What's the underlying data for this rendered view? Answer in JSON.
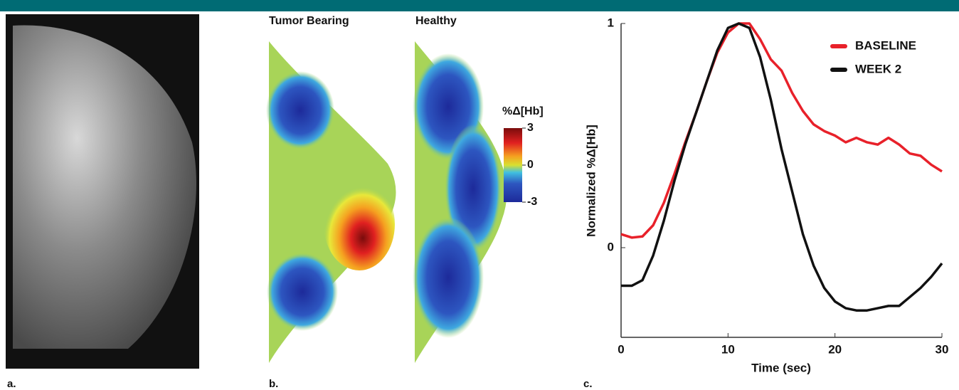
{
  "panel_labels": [
    "a.",
    "b.",
    "c."
  ],
  "chart_data": [
    {
      "type": "heatmap",
      "panel_titles": [
        "Tumor Bearing",
        "Healthy"
      ],
      "colorbar_title": "%Δ[Hb]",
      "clim": [
        -3,
        3
      ],
      "cticks": [
        3,
        0,
        -3
      ]
    },
    {
      "type": "line",
      "xlabel": "Time (sec)",
      "ylabel": "Normalized %Δ[Hb]",
      "x": [
        0,
        1,
        2,
        3,
        4,
        5,
        6,
        7,
        8,
        9,
        10,
        11,
        12,
        13,
        14,
        15,
        16,
        17,
        18,
        19,
        20,
        21,
        22,
        23,
        24,
        25,
        26,
        27,
        28,
        29,
        30
      ],
      "xlim": [
        0,
        30
      ],
      "xticks": [
        0,
        10,
        20,
        30
      ],
      "ylim": [
        -0.4,
        1
      ],
      "yticks": [
        0,
        1
      ],
      "legend": "upper right",
      "series": [
        {
          "name": "BASELINE",
          "color": "#e8212a",
          "values": [
            0.06,
            0.045,
            0.05,
            0.1,
            0.2,
            0.33,
            0.47,
            0.6,
            0.74,
            0.87,
            0.96,
            1.0,
            1.0,
            0.93,
            0.84,
            0.79,
            0.69,
            0.61,
            0.55,
            0.52,
            0.5,
            0.47,
            0.49,
            0.47,
            0.46,
            0.49,
            0.46,
            0.42,
            0.41,
            0.37,
            0.34
          ]
        },
        {
          "name": "WEEK 2",
          "color": "#111111",
          "values": [
            -0.17,
            -0.17,
            -0.145,
            -0.035,
            0.12,
            0.3,
            0.46,
            0.6,
            0.74,
            0.88,
            0.98,
            1.0,
            0.98,
            0.85,
            0.66,
            0.44,
            0.25,
            0.06,
            -0.08,
            -0.18,
            -0.24,
            -0.27,
            -0.28,
            -0.28,
            -0.27,
            -0.26,
            -0.26,
            -0.22,
            -0.18,
            -0.13,
            -0.07
          ]
        }
      ]
    }
  ]
}
